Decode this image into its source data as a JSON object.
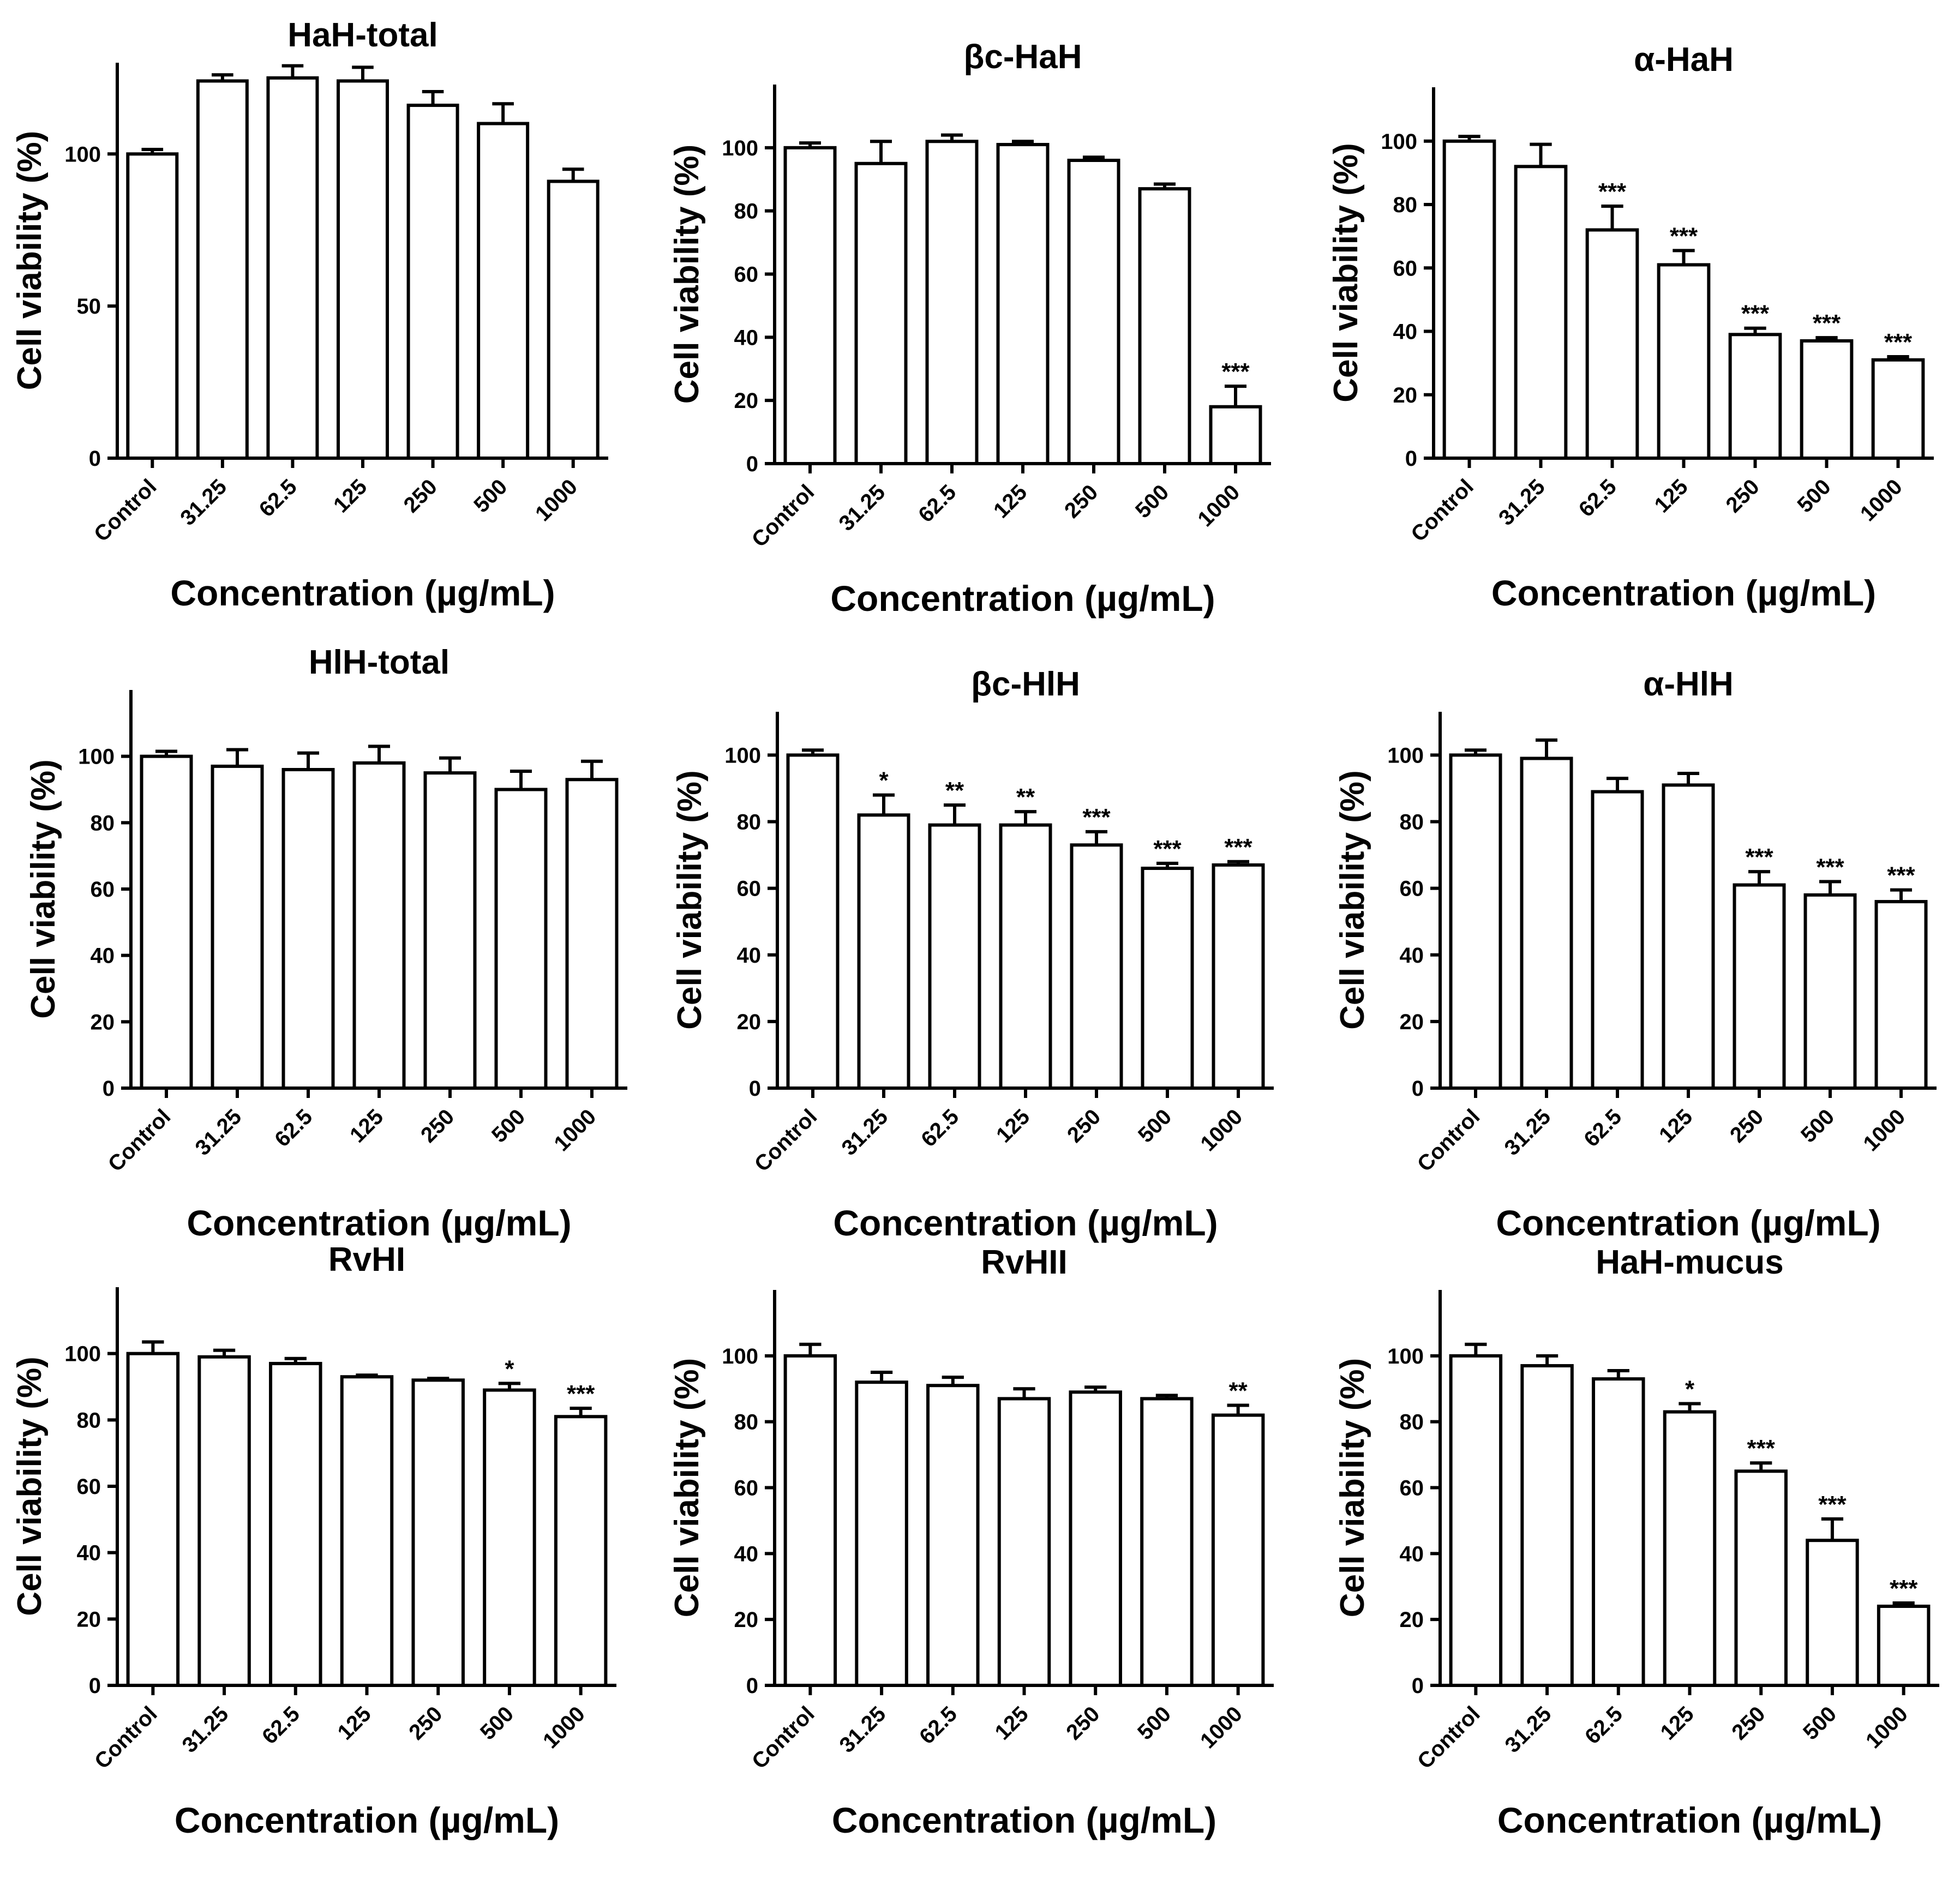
{
  "chart_data": [
    {
      "type": "bar",
      "title": "HaH-total",
      "xlabel": "Concentration (µg/mL)",
      "ylabel": "Cell viability (%)",
      "categories": [
        "Control",
        "31.25",
        "62.5",
        "125",
        "250",
        "500",
        "1000"
      ],
      "values": [
        100,
        124,
        125,
        124,
        116,
        110,
        91
      ],
      "errors": [
        1.5,
        2,
        4,
        4.5,
        4.5,
        6.5,
        4
      ],
      "significance": [
        "",
        "",
        "",
        "",
        "",
        "",
        ""
      ],
      "yticks": [
        0,
        50,
        100
      ],
      "ylim": [
        0,
        130
      ],
      "grid": false
    },
    {
      "type": "bar",
      "title": "βc-HaH",
      "xlabel": "Concentration (µg/mL)",
      "ylabel": "Cell viability (%)",
      "categories": [
        "Control",
        "31.25",
        "62.5",
        "125",
        "250",
        "500",
        "1000"
      ],
      "values": [
        100,
        95,
        102,
        101,
        96,
        87,
        18
      ],
      "errors": [
        1.5,
        7,
        2,
        1,
        1,
        1.5,
        6.5
      ],
      "significance": [
        "",
        "",
        "",
        "",
        "",
        "",
        "***"
      ],
      "yticks": [
        0,
        20,
        40,
        60,
        80,
        100
      ],
      "ylim": [
        0,
        120
      ],
      "grid": false
    },
    {
      "type": "bar",
      "title": "α-HaH",
      "xlabel": "Concentration (µg/mL)",
      "ylabel": "Cell viability (%)",
      "categories": [
        "Control",
        "31.25",
        "62.5",
        "125",
        "250",
        "500",
        "1000"
      ],
      "values": [
        100,
        92,
        72,
        61,
        39,
        37,
        31
      ],
      "errors": [
        1.5,
        7,
        7.5,
        4.5,
        2,
        1,
        1
      ],
      "significance": [
        "",
        "",
        "***",
        "***",
        "***",
        "***",
        "***"
      ],
      "yticks": [
        0,
        20,
        40,
        60,
        80,
        100
      ],
      "ylim": [
        0,
        117
      ],
      "grid": false
    },
    {
      "type": "bar",
      "title": "HlH-total",
      "xlabel": "Concentration (µg/mL)",
      "ylabel": "Cell viability (%)",
      "categories": [
        "Control",
        "31.25",
        "62.5",
        "125",
        "250",
        "500",
        "1000"
      ],
      "values": [
        100,
        97,
        96,
        98,
        95,
        90,
        93
      ],
      "errors": [
        1.5,
        5,
        5,
        5,
        4.5,
        5.5,
        5.5
      ],
      "significance": [
        "",
        "",
        "",
        "",
        "",
        "",
        ""
      ],
      "yticks": [
        0,
        20,
        40,
        60,
        80,
        100
      ],
      "ylim": [
        0,
        120
      ],
      "grid": false
    },
    {
      "type": "bar",
      "title": "βc-HlH",
      "xlabel": "Concentration (µg/mL)",
      "ylabel": "Cell viability (%)",
      "categories": [
        "Control",
        "31.25",
        "62.5",
        "125",
        "250",
        "500",
        "1000"
      ],
      "values": [
        100,
        82,
        79,
        79,
        73,
        66,
        67
      ],
      "errors": [
        1.5,
        6,
        6,
        4,
        4,
        1.5,
        1
      ],
      "significance": [
        "",
        "*",
        "**",
        "**",
        "***",
        "***",
        "***"
      ],
      "yticks": [
        0,
        20,
        40,
        60,
        80,
        100
      ],
      "ylim": [
        0,
        113
      ],
      "grid": false
    },
    {
      "type": "bar",
      "title": "α-HlH",
      "xlabel": "Concentration (µg/mL)",
      "ylabel": "Cell viability (%)",
      "categories": [
        "Control",
        "31.25",
        "62.5",
        "125",
        "250",
        "500",
        "1000"
      ],
      "values": [
        100,
        99,
        89,
        91,
        61,
        58,
        56
      ],
      "errors": [
        1.5,
        5.5,
        4,
        3.5,
        4,
        4,
        3.5
      ],
      "significance": [
        "",
        "",
        "",
        "",
        "***",
        "***",
        "***"
      ],
      "yticks": [
        0,
        20,
        40,
        60,
        80,
        100
      ],
      "ylim": [
        0,
        113
      ],
      "grid": false
    },
    {
      "type": "bar",
      "title": "RvHI",
      "xlabel": "Concentration (µg/mL)",
      "ylabel": "Cell viability (%)",
      "categories": [
        "Control",
        "31.25",
        "62.5",
        "125",
        "250",
        "500",
        "1000"
      ],
      "values": [
        100,
        99,
        97,
        93,
        92,
        89,
        81
      ],
      "errors": [
        3.5,
        2,
        1.5,
        0.5,
        0.5,
        2,
        2.5
      ],
      "significance": [
        "",
        "",
        "",
        "",
        "",
        "*",
        "***"
      ],
      "yticks": [
        0,
        20,
        40,
        60,
        80,
        100
      ],
      "ylim": [
        0,
        120
      ],
      "grid": false
    },
    {
      "type": "bar",
      "title": "RvHII",
      "xlabel": "Concentration (µg/mL)",
      "ylabel": "Cell viability (%)",
      "categories": [
        "Control",
        "31.25",
        "62.5",
        "125",
        "250",
        "500",
        "1000"
      ],
      "values": [
        100,
        92,
        91,
        87,
        89,
        87,
        82
      ],
      "errors": [
        3.5,
        3,
        2.5,
        3,
        1.5,
        1,
        3
      ],
      "significance": [
        "",
        "",
        "",
        "",
        "",
        "",
        "**"
      ],
      "yticks": [
        0,
        20,
        40,
        60,
        80,
        100
      ],
      "ylim": [
        0,
        120
      ],
      "grid": false
    },
    {
      "type": "bar",
      "title": "HaH-mucus",
      "xlabel": "Concentration (µg/mL)",
      "ylabel": "Cell viability (%)",
      "categories": [
        "Control",
        "31.25",
        "62.5",
        "125",
        "250",
        "500",
        "1000"
      ],
      "values": [
        100,
        97,
        93,
        83,
        65,
        44,
        24
      ],
      "errors": [
        3.5,
        3,
        2.5,
        2.5,
        2.5,
        6.5,
        1
      ],
      "significance": [
        "",
        "",
        "",
        "*",
        "***",
        "***",
        "***"
      ],
      "yticks": [
        0,
        20,
        40,
        60,
        80,
        100
      ],
      "ylim": [
        0,
        120
      ],
      "grid": false
    }
  ]
}
